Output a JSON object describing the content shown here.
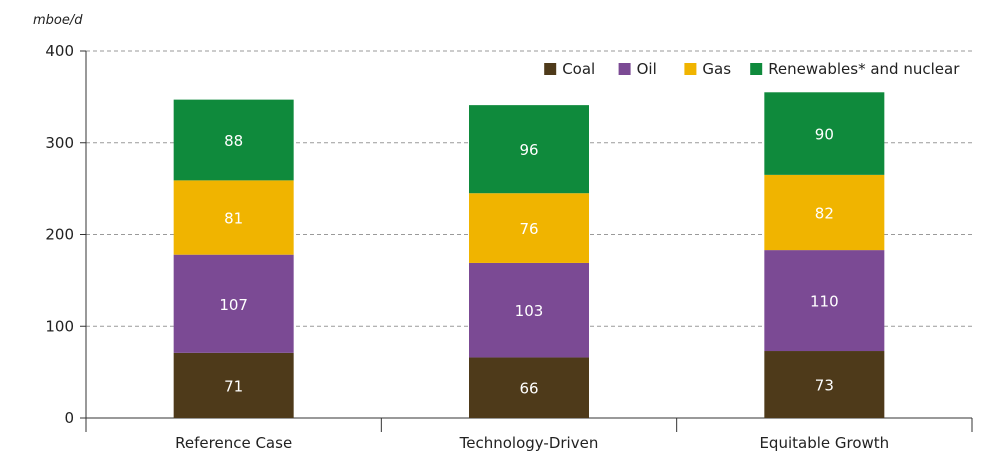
{
  "chart_data": {
    "type": "bar",
    "stacked": true,
    "unit": "mboe/d",
    "categories": [
      "Reference Case",
      "Technology-Driven",
      "Equitable Growth"
    ],
    "series": [
      {
        "name": "Coal",
        "color": "#4e3a1a",
        "values": [
          71,
          66,
          73
        ]
      },
      {
        "name": "Oil",
        "color": "#7b4a94",
        "values": [
          107,
          103,
          110
        ]
      },
      {
        "name": "Gas",
        "color": "#f0b400",
        "values": [
          81,
          76,
          82
        ]
      },
      {
        "name": "Renewables* and nuclear",
        "color": "#0f8a3c",
        "values": [
          88,
          96,
          90
        ]
      }
    ],
    "ylim": [
      0,
      400
    ],
    "yticks": [
      0,
      100,
      200,
      300,
      400
    ],
    "grid": true,
    "legend_position": "top-right"
  }
}
